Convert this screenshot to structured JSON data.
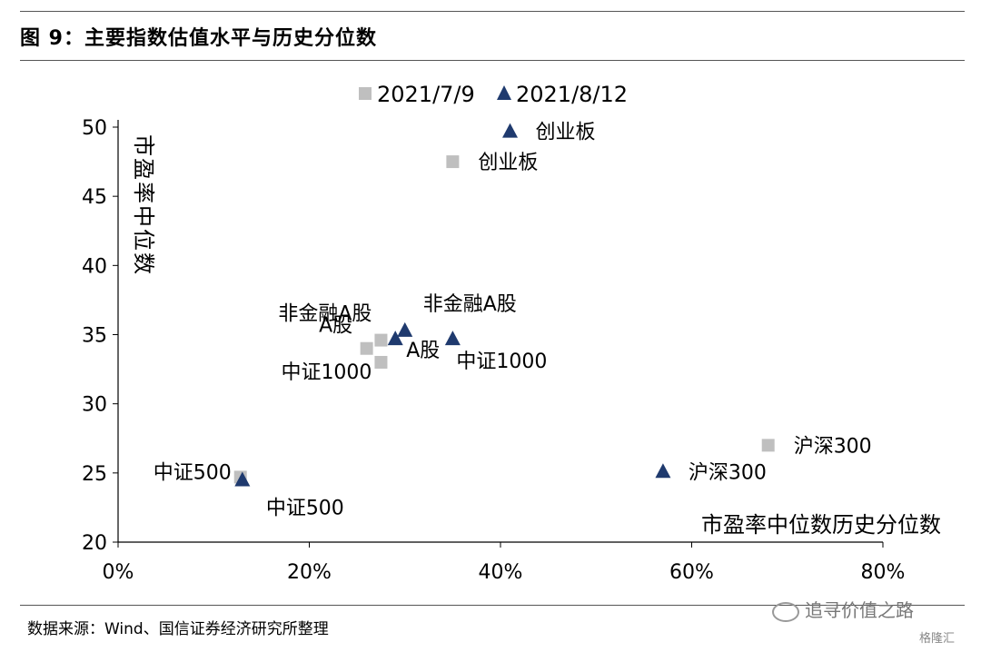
{
  "figure": {
    "title": "图 9：主要指数估值水平与历史分位数",
    "source": "数据来源：Wind、国信证券经济研究所整理",
    "watermark": "追寻价值之路",
    "brand": "格隆汇"
  },
  "chart_data": {
    "type": "scatter",
    "xlabel": "市盈率中位数历史分位数",
    "ylabel": "市盈率中位数",
    "xlim": [
      0,
      80
    ],
    "ylim": [
      20,
      50
    ],
    "x_ticks": [
      "0%",
      "20%",
      "40%",
      "60%",
      "80%"
    ],
    "y_ticks": [
      "20",
      "25",
      "30",
      "35",
      "40",
      "45",
      "50"
    ],
    "x_unit": "%",
    "legend_position": "top-center",
    "series": [
      {
        "name": "2021/7/9",
        "marker": "square",
        "color": "#bfbfbf",
        "points": [
          {
            "label": "创业板",
            "x": 35,
            "y": 47.5
          },
          {
            "label": "非金融A股",
            "x": 27.5,
            "y": 34.6
          },
          {
            "label": "A股",
            "x": 26,
            "y": 34.0
          },
          {
            "label": "中证1000",
            "x": 27.5,
            "y": 33.0
          },
          {
            "label": "沪深300",
            "x": 68,
            "y": 27.0
          },
          {
            "label": "中证500",
            "x": 12.8,
            "y": 24.7
          }
        ]
      },
      {
        "name": "2021/8/12",
        "marker": "triangle",
        "color": "#1f3a6e",
        "points": [
          {
            "label": "创业板",
            "x": 41,
            "y": 49.7
          },
          {
            "label": "非金融A股",
            "x": 30,
            "y": 35.3
          },
          {
            "label": "A股",
            "x": 29,
            "y": 34.7
          },
          {
            "label": "中证1000",
            "x": 35,
            "y": 34.7
          },
          {
            "label": "沪深300",
            "x": 57,
            "y": 25.1
          },
          {
            "label": "中证500",
            "x": 13,
            "y": 24.5
          }
        ]
      }
    ]
  }
}
